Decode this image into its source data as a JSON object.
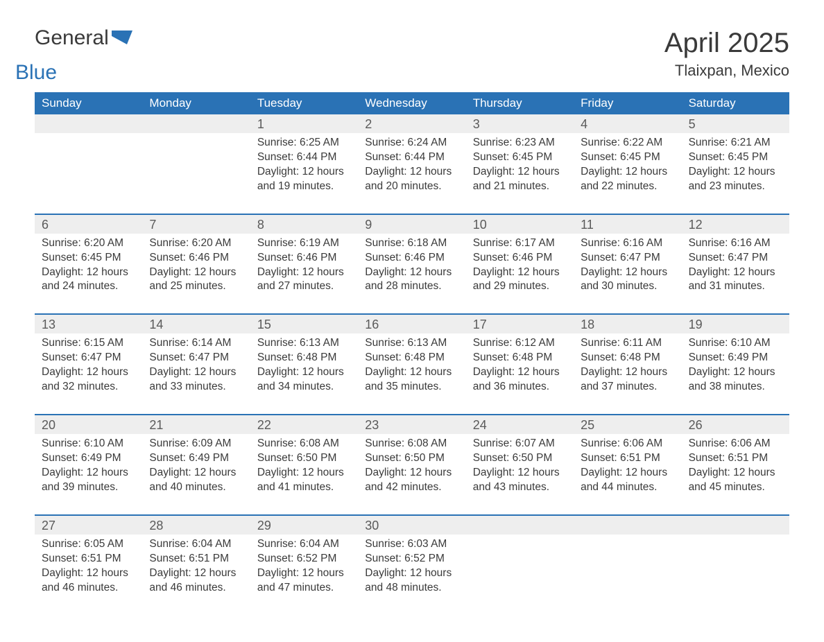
{
  "logo": {
    "word1": "General",
    "word2": "Blue"
  },
  "title": "April 2025",
  "location": "Tlaixpan, Mexico",
  "colors": {
    "header_bg": "#2a72b5",
    "header_text": "#ffffff",
    "daynum_bg": "#eeeeee",
    "body_text": "#3a3a3a",
    "rule": "#2a72b5"
  },
  "weekday_labels": [
    "Sunday",
    "Monday",
    "Tuesday",
    "Wednesday",
    "Thursday",
    "Friday",
    "Saturday"
  ],
  "weeks": [
    {
      "days": [
        {
          "num": "",
          "lines": []
        },
        {
          "num": "",
          "lines": []
        },
        {
          "num": "1",
          "lines": [
            "Sunrise: 6:25 AM",
            "Sunset: 6:44 PM",
            "Daylight: 12 hours",
            "and 19 minutes."
          ]
        },
        {
          "num": "2",
          "lines": [
            "Sunrise: 6:24 AM",
            "Sunset: 6:44 PM",
            "Daylight: 12 hours",
            "and 20 minutes."
          ]
        },
        {
          "num": "3",
          "lines": [
            "Sunrise: 6:23 AM",
            "Sunset: 6:45 PM",
            "Daylight: 12 hours",
            "and 21 minutes."
          ]
        },
        {
          "num": "4",
          "lines": [
            "Sunrise: 6:22 AM",
            "Sunset: 6:45 PM",
            "Daylight: 12 hours",
            "and 22 minutes."
          ]
        },
        {
          "num": "5",
          "lines": [
            "Sunrise: 6:21 AM",
            "Sunset: 6:45 PM",
            "Daylight: 12 hours",
            "and 23 minutes."
          ]
        }
      ]
    },
    {
      "days": [
        {
          "num": "6",
          "lines": [
            "Sunrise: 6:20 AM",
            "Sunset: 6:45 PM",
            "Daylight: 12 hours",
            "and 24 minutes."
          ]
        },
        {
          "num": "7",
          "lines": [
            "Sunrise: 6:20 AM",
            "Sunset: 6:46 PM",
            "Daylight: 12 hours",
            "and 25 minutes."
          ]
        },
        {
          "num": "8",
          "lines": [
            "Sunrise: 6:19 AM",
            "Sunset: 6:46 PM",
            "Daylight: 12 hours",
            "and 27 minutes."
          ]
        },
        {
          "num": "9",
          "lines": [
            "Sunrise: 6:18 AM",
            "Sunset: 6:46 PM",
            "Daylight: 12 hours",
            "and 28 minutes."
          ]
        },
        {
          "num": "10",
          "lines": [
            "Sunrise: 6:17 AM",
            "Sunset: 6:46 PM",
            "Daylight: 12 hours",
            "and 29 minutes."
          ]
        },
        {
          "num": "11",
          "lines": [
            "Sunrise: 6:16 AM",
            "Sunset: 6:47 PM",
            "Daylight: 12 hours",
            "and 30 minutes."
          ]
        },
        {
          "num": "12",
          "lines": [
            "Sunrise: 6:16 AM",
            "Sunset: 6:47 PM",
            "Daylight: 12 hours",
            "and 31 minutes."
          ]
        }
      ]
    },
    {
      "days": [
        {
          "num": "13",
          "lines": [
            "Sunrise: 6:15 AM",
            "Sunset: 6:47 PM",
            "Daylight: 12 hours",
            "and 32 minutes."
          ]
        },
        {
          "num": "14",
          "lines": [
            "Sunrise: 6:14 AM",
            "Sunset: 6:47 PM",
            "Daylight: 12 hours",
            "and 33 minutes."
          ]
        },
        {
          "num": "15",
          "lines": [
            "Sunrise: 6:13 AM",
            "Sunset: 6:48 PM",
            "Daylight: 12 hours",
            "and 34 minutes."
          ]
        },
        {
          "num": "16",
          "lines": [
            "Sunrise: 6:13 AM",
            "Sunset: 6:48 PM",
            "Daylight: 12 hours",
            "and 35 minutes."
          ]
        },
        {
          "num": "17",
          "lines": [
            "Sunrise: 6:12 AM",
            "Sunset: 6:48 PM",
            "Daylight: 12 hours",
            "and 36 minutes."
          ]
        },
        {
          "num": "18",
          "lines": [
            "Sunrise: 6:11 AM",
            "Sunset: 6:48 PM",
            "Daylight: 12 hours",
            "and 37 minutes."
          ]
        },
        {
          "num": "19",
          "lines": [
            "Sunrise: 6:10 AM",
            "Sunset: 6:49 PM",
            "Daylight: 12 hours",
            "and 38 minutes."
          ]
        }
      ]
    },
    {
      "days": [
        {
          "num": "20",
          "lines": [
            "Sunrise: 6:10 AM",
            "Sunset: 6:49 PM",
            "Daylight: 12 hours",
            "and 39 minutes."
          ]
        },
        {
          "num": "21",
          "lines": [
            "Sunrise: 6:09 AM",
            "Sunset: 6:49 PM",
            "Daylight: 12 hours",
            "and 40 minutes."
          ]
        },
        {
          "num": "22",
          "lines": [
            "Sunrise: 6:08 AM",
            "Sunset: 6:50 PM",
            "Daylight: 12 hours",
            "and 41 minutes."
          ]
        },
        {
          "num": "23",
          "lines": [
            "Sunrise: 6:08 AM",
            "Sunset: 6:50 PM",
            "Daylight: 12 hours",
            "and 42 minutes."
          ]
        },
        {
          "num": "24",
          "lines": [
            "Sunrise: 6:07 AM",
            "Sunset: 6:50 PM",
            "Daylight: 12 hours",
            "and 43 minutes."
          ]
        },
        {
          "num": "25",
          "lines": [
            "Sunrise: 6:06 AM",
            "Sunset: 6:51 PM",
            "Daylight: 12 hours",
            "and 44 minutes."
          ]
        },
        {
          "num": "26",
          "lines": [
            "Sunrise: 6:06 AM",
            "Sunset: 6:51 PM",
            "Daylight: 12 hours",
            "and 45 minutes."
          ]
        }
      ]
    },
    {
      "days": [
        {
          "num": "27",
          "lines": [
            "Sunrise: 6:05 AM",
            "Sunset: 6:51 PM",
            "Daylight: 12 hours",
            "and 46 minutes."
          ]
        },
        {
          "num": "28",
          "lines": [
            "Sunrise: 6:04 AM",
            "Sunset: 6:51 PM",
            "Daylight: 12 hours",
            "and 46 minutes."
          ]
        },
        {
          "num": "29",
          "lines": [
            "Sunrise: 6:04 AM",
            "Sunset: 6:52 PM",
            "Daylight: 12 hours",
            "and 47 minutes."
          ]
        },
        {
          "num": "30",
          "lines": [
            "Sunrise: 6:03 AM",
            "Sunset: 6:52 PM",
            "Daylight: 12 hours",
            "and 48 minutes."
          ]
        },
        {
          "num": "",
          "lines": []
        },
        {
          "num": "",
          "lines": []
        },
        {
          "num": "",
          "lines": []
        }
      ]
    }
  ]
}
